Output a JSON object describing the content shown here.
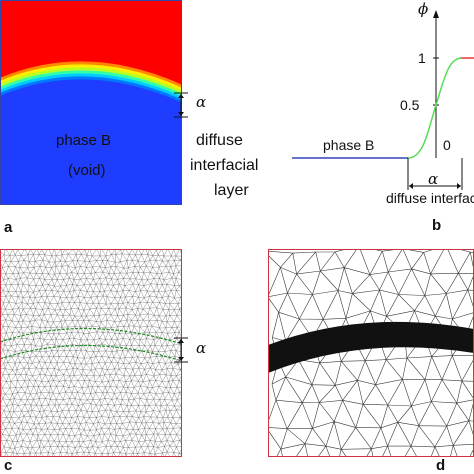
{
  "panel_a": {
    "letter": "a",
    "phase_label": "phase B",
    "phase_sub": "(void)",
    "alpha": "α",
    "side_label_1": "diffuse",
    "side_label_2": "interfacial",
    "side_label_3": "layer",
    "colors": {
      "top": "#ff0000",
      "bottom": "#1f3dff"
    }
  },
  "panel_b": {
    "letter": "b",
    "phi": "ϕ",
    "tick_1": "1",
    "tick_05": "0.5",
    "tick_0": "0",
    "phase_label": "phase B",
    "alpha": "α",
    "bottom_label": "diffuse interfacial",
    "colors": {
      "curve": "#55dd55",
      "axis": "#3344bb",
      "top_line": "#ee3333"
    }
  },
  "panel_c": {
    "letter": "c",
    "alpha": "α",
    "colors": {
      "border": "#cc3344",
      "band": "#228822"
    }
  },
  "panel_d": {
    "letter": "d",
    "colors": {
      "border": "#cc3344",
      "band": "#111111"
    }
  }
}
